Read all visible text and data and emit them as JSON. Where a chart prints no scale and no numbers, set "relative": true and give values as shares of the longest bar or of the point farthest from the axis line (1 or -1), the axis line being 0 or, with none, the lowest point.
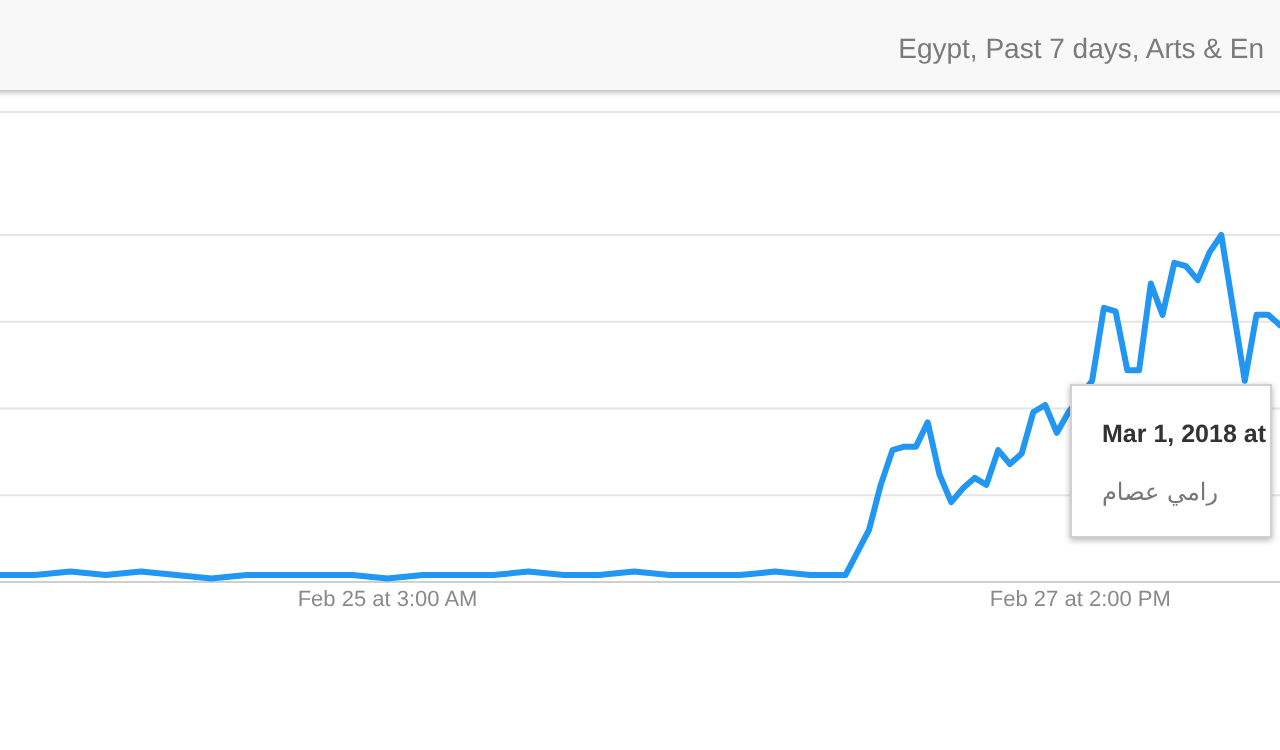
{
  "chart_data": {
    "type": "line",
    "title": "Egypt, Past 7 days, Arts & En",
    "relative": true,
    "grid": true,
    "x": [
      "2018-02-23T18:00",
      "2018-02-23T21:00",
      "2018-02-24T00:00",
      "2018-02-24T03:00",
      "2018-02-24T06:00",
      "2018-02-24T09:00",
      "2018-02-24T12:00",
      "2018-02-24T15:00",
      "2018-02-24T18:00",
      "2018-02-24T21:00",
      "2018-02-25T00:00",
      "2018-02-25T03:00",
      "2018-02-25T06:00",
      "2018-02-25T09:00",
      "2018-02-25T12:00",
      "2018-02-25T15:00",
      "2018-02-25T18:00",
      "2018-02-25T21:00",
      "2018-02-26T00:00",
      "2018-02-26T03:00",
      "2018-02-26T06:00",
      "2018-02-26T09:00",
      "2018-02-26T12:00",
      "2018-02-26T15:00",
      "2018-02-26T18:00",
      "2018-02-26T20:00",
      "2018-02-26T21:00",
      "2018-02-26T22:00",
      "2018-02-26T23:00",
      "2018-02-27T00:00",
      "2018-02-27T01:00",
      "2018-02-27T02:00",
      "2018-02-27T03:00",
      "2018-02-27T04:00",
      "2018-02-27T05:00",
      "2018-02-27T06:00",
      "2018-02-27T07:00",
      "2018-02-27T08:00",
      "2018-02-27T09:00",
      "2018-02-27T10:00",
      "2018-02-27T11:00",
      "2018-02-27T12:00",
      "2018-02-27T13:00",
      "2018-02-27T15:00",
      "2018-02-27T16:00",
      "2018-02-27T17:00",
      "2018-02-27T18:00",
      "2018-02-27T19:00",
      "2018-02-27T20:00",
      "2018-02-27T21:00",
      "2018-02-27T22:00",
      "2018-02-27T23:00",
      "2018-02-28T00:00",
      "2018-02-28T01:00",
      "2018-02-28T02:00",
      "2018-02-28T04:00",
      "2018-02-28T05:00",
      "2018-02-28T06:00",
      "2018-02-28T07:00"
    ],
    "series": [
      {
        "color": "#2196f3",
        "values": [
          0.02,
          0.02,
          0.03,
          0.02,
          0.03,
          0.02,
          0.01,
          0.02,
          0.02,
          0.02,
          0.02,
          0.01,
          0.02,
          0.02,
          0.02,
          0.03,
          0.02,
          0.02,
          0.03,
          0.02,
          0.02,
          0.02,
          0.03,
          0.02,
          0.02,
          0.15,
          0.28,
          0.38,
          0.39,
          0.39,
          0.46,
          0.31,
          0.23,
          0.27,
          0.3,
          0.28,
          0.38,
          0.34,
          0.37,
          0.49,
          0.51,
          0.43,
          0.49,
          0.58,
          0.79,
          0.78,
          0.61,
          0.61,
          0.86,
          0.77,
          0.92,
          0.91,
          0.87,
          0.95,
          1,
          0.58,
          0.77,
          0.77,
          0.74
        ]
      }
    ],
    "xlim": [
      "2018-02-23T18:00",
      "2018-02-28T07:00"
    ],
    "xticks": [
      {
        "value": "2018-02-25T03:00",
        "label": "Feb 25 at 3:00 AM"
      },
      {
        "value": "2018-02-27T14:00",
        "label": "Feb 27 at 2:00 PM"
      }
    ],
    "annotations": [
      "Mar 1, 2018 at",
      "رامي عصام"
    ]
  }
}
